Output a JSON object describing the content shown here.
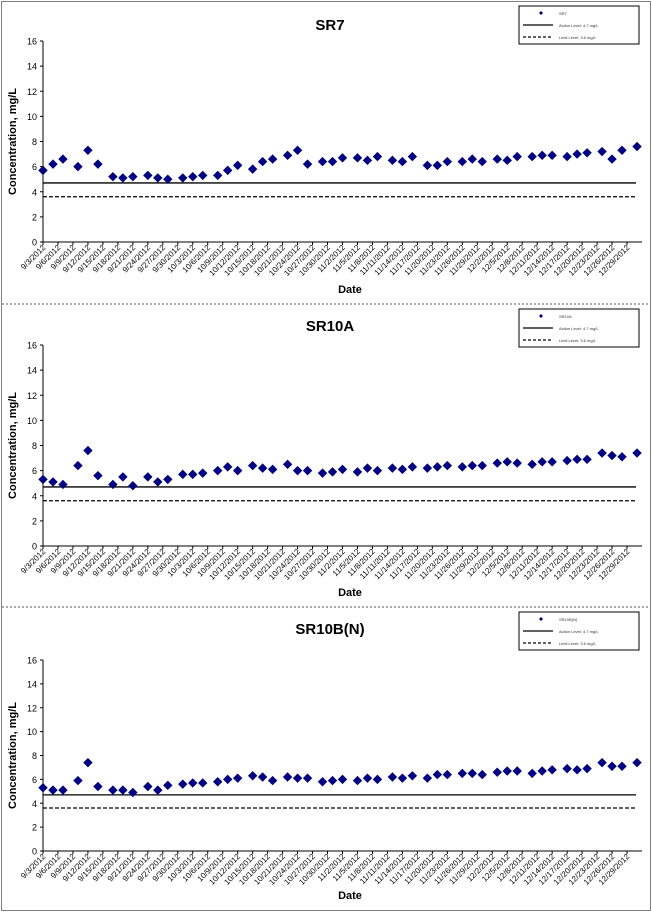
{
  "dates": [
    "9/3/2012",
    "9/6/2012",
    "9/9/2012",
    "9/12/2012",
    "9/15/2012",
    "9/18/2012",
    "9/21/2012",
    "9/24/2012",
    "9/27/2012",
    "9/30/2012",
    "10/3/2012",
    "10/6/2012",
    "10/9/2012",
    "10/12/2012",
    "10/15/2012",
    "10/18/2012",
    "10/21/2012",
    "10/24/2012",
    "10/27/2012",
    "10/30/2012",
    "11/2/2012",
    "11/5/2012",
    "11/8/2012",
    "11/11/2012",
    "11/14/2012",
    "11/17/2012",
    "11/20/2012",
    "11/23/2012",
    "11/26/2012",
    "11/29/2012",
    "12/2/2012",
    "12/5/2012",
    "12/8/2012",
    "12/11/2012",
    "12/14/2012",
    "12/17/2012",
    "12/20/2012",
    "12/23/2012",
    "12/26/2012",
    "12/29/2012"
  ],
  "colors": {
    "marker": "#000080",
    "line": "#000000",
    "frame": "#808080"
  },
  "chart_data": [
    {
      "type": "scatter",
      "title": "SR7",
      "xlabel": "Date",
      "ylabel": "Concentration, mg/L",
      "ylim": [
        0,
        16
      ],
      "yticks": [
        0,
        2,
        4,
        6,
        8,
        10,
        12,
        14,
        16
      ],
      "xlim": [
        "9/3/2012",
        "1/1/2013"
      ],
      "grid": false,
      "legend_position": "top-right",
      "legend": [
        "SR7",
        "Action Level: 4.7 mg/L",
        "Limit Level: 3.6 mg/L"
      ],
      "series": [
        {
          "name": "SR7",
          "marker": "diamond",
          "x": [
            "9/3/2012",
            "9/5/2012",
            "9/7/2012",
            "9/10/2012",
            "9/12/2012",
            "9/14/2012",
            "9/17/2012",
            "9/19/2012",
            "9/21/2012",
            "9/24/2012",
            "9/26/2012",
            "9/28/2012",
            "10/1/2012",
            "10/3/2012",
            "10/5/2012",
            "10/8/2012",
            "10/10/2012",
            "10/12/2012",
            "10/15/2012",
            "10/17/2012",
            "10/19/2012",
            "10/22/2012",
            "10/24/2012",
            "10/26/2012",
            "10/29/2012",
            "10/31/2012",
            "11/2/2012",
            "11/5/2012",
            "11/7/2012",
            "11/9/2012",
            "11/12/2012",
            "11/14/2012",
            "11/16/2012",
            "11/19/2012",
            "11/21/2012",
            "11/23/2012",
            "11/26/2012",
            "11/28/2012",
            "11/30/2012",
            "12/3/2012",
            "12/5/2012",
            "12/7/2012",
            "12/10/2012",
            "12/12/2012",
            "12/14/2012",
            "12/17/2012",
            "12/19/2012",
            "12/21/2012",
            "12/24/2012",
            "12/26/2012",
            "12/28/2012",
            "12/31/2012"
          ],
          "y": [
            5.7,
            6.2,
            6.6,
            6.0,
            7.3,
            6.2,
            5.2,
            5.1,
            5.2,
            5.3,
            5.1,
            5.0,
            5.1,
            5.2,
            5.3,
            5.3,
            5.7,
            6.1,
            5.8,
            6.4,
            6.6,
            6.9,
            7.3,
            6.2,
            6.4,
            6.4,
            6.7,
            6.7,
            6.5,
            6.8,
            6.5,
            6.4,
            6.8,
            6.1,
            6.1,
            6.4,
            6.4,
            6.6,
            6.4,
            6.6,
            6.5,
            6.8,
            6.8,
            6.9,
            6.9,
            6.8,
            7.0,
            7.1,
            7.2,
            6.6,
            7.3,
            7.6
          ]
        }
      ],
      "reference_lines": [
        {
          "name": "Action Level: 4.7 mg/L",
          "y": 4.7,
          "style": "solid"
        },
        {
          "name": "Limit Level: 3.6 mg/L",
          "y": 3.6,
          "style": "dashed"
        }
      ]
    },
    {
      "type": "scatter",
      "title": "SR10A",
      "xlabel": "Date",
      "ylabel": "Concentration, mg/L",
      "ylim": [
        0,
        16
      ],
      "yticks": [
        0,
        2,
        4,
        6,
        8,
        10,
        12,
        14,
        16
      ],
      "xlim": [
        "9/3/2012",
        "1/1/2013"
      ],
      "grid": false,
      "legend_position": "top-right",
      "legend": [
        "SR10A",
        "Action Level: 4.7 mg/L",
        "Limit Level: 3.6 mg/L"
      ],
      "series": [
        {
          "name": "SR10A",
          "marker": "diamond",
          "x": [
            "9/3/2012",
            "9/5/2012",
            "9/7/2012",
            "9/10/2012",
            "9/12/2012",
            "9/14/2012",
            "9/17/2012",
            "9/19/2012",
            "9/21/2012",
            "9/24/2012",
            "9/26/2012",
            "9/28/2012",
            "10/1/2012",
            "10/3/2012",
            "10/5/2012",
            "10/8/2012",
            "10/10/2012",
            "10/12/2012",
            "10/15/2012",
            "10/17/2012",
            "10/19/2012",
            "10/22/2012",
            "10/24/2012",
            "10/26/2012",
            "10/29/2012",
            "10/31/2012",
            "11/2/2012",
            "11/5/2012",
            "11/7/2012",
            "11/9/2012",
            "11/12/2012",
            "11/14/2012",
            "11/16/2012",
            "11/19/2012",
            "11/21/2012",
            "11/23/2012",
            "11/26/2012",
            "11/28/2012",
            "11/30/2012",
            "12/3/2012",
            "12/5/2012",
            "12/7/2012",
            "12/10/2012",
            "12/12/2012",
            "12/14/2012",
            "12/17/2012",
            "12/19/2012",
            "12/21/2012",
            "12/24/2012",
            "12/26/2012",
            "12/28/2012",
            "12/31/2012"
          ],
          "y": [
            5.3,
            5.1,
            4.9,
            6.4,
            7.6,
            5.6,
            4.9,
            5.5,
            4.8,
            5.5,
            5.1,
            5.3,
            5.7,
            5.7,
            5.8,
            6.0,
            6.3,
            6.0,
            6.4,
            6.2,
            6.1,
            6.5,
            6.0,
            6.0,
            5.8,
            5.9,
            6.1,
            5.9,
            6.2,
            6.0,
            6.2,
            6.1,
            6.3,
            6.2,
            6.3,
            6.4,
            6.3,
            6.4,
            6.4,
            6.6,
            6.7,
            6.6,
            6.5,
            6.7,
            6.7,
            6.8,
            6.9,
            6.9,
            7.4,
            7.2,
            7.1,
            7.4
          ]
        }
      ],
      "reference_lines": [
        {
          "name": "Action Level: 4.7 mg/L",
          "y": 4.7,
          "style": "solid"
        },
        {
          "name": "Limit Level: 3.6 mg/L",
          "y": 3.6,
          "style": "dashed"
        }
      ]
    },
    {
      "type": "scatter",
      "title": "SR10B(N)",
      "xlabel": "Date",
      "ylabel": "Concentration, mg/L",
      "ylim": [
        0,
        16
      ],
      "yticks": [
        0,
        2,
        4,
        6,
        8,
        10,
        12,
        14,
        16
      ],
      "xlim": [
        "9/3/2012",
        "1/1/2013"
      ],
      "grid": false,
      "legend_position": "top-right",
      "legend": [
        "SR10B(N)",
        "Action Level: 4.7 mg/L",
        "Limit Level: 3.6 mg/L"
      ],
      "series": [
        {
          "name": "SR10B(N)",
          "marker": "diamond",
          "x": [
            "9/3/2012",
            "9/5/2012",
            "9/7/2012",
            "9/10/2012",
            "9/12/2012",
            "9/14/2012",
            "9/17/2012",
            "9/19/2012",
            "9/21/2012",
            "9/24/2012",
            "9/26/2012",
            "9/28/2012",
            "10/1/2012",
            "10/3/2012",
            "10/5/2012",
            "10/8/2012",
            "10/10/2012",
            "10/12/2012",
            "10/15/2012",
            "10/17/2012",
            "10/19/2012",
            "10/22/2012",
            "10/24/2012",
            "10/26/2012",
            "10/29/2012",
            "10/31/2012",
            "11/2/2012",
            "11/5/2012",
            "11/7/2012",
            "11/9/2012",
            "11/12/2012",
            "11/14/2012",
            "11/16/2012",
            "11/19/2012",
            "11/21/2012",
            "11/23/2012",
            "11/26/2012",
            "11/28/2012",
            "11/30/2012",
            "12/3/2012",
            "12/5/2012",
            "12/7/2012",
            "12/10/2012",
            "12/12/2012",
            "12/14/2012",
            "12/17/2012",
            "12/19/2012",
            "12/21/2012",
            "12/24/2012",
            "12/26/2012",
            "12/28/2012",
            "12/31/2012"
          ],
          "y": [
            5.3,
            5.1,
            5.1,
            5.9,
            7.4,
            5.4,
            5.1,
            5.1,
            4.9,
            5.4,
            5.1,
            5.5,
            5.6,
            5.7,
            5.7,
            5.8,
            6.0,
            6.1,
            6.3,
            6.2,
            5.9,
            6.2,
            6.1,
            6.1,
            5.8,
            5.9,
            6.0,
            5.9,
            6.1,
            6.0,
            6.2,
            6.1,
            6.3,
            6.1,
            6.4,
            6.4,
            6.5,
            6.5,
            6.4,
            6.6,
            6.7,
            6.7,
            6.5,
            6.7,
            6.8,
            6.9,
            6.8,
            6.9,
            7.4,
            7.1,
            7.1,
            7.4
          ]
        }
      ],
      "reference_lines": [
        {
          "name": "Action Level: 4.7 mg/L",
          "y": 4.7,
          "style": "solid"
        },
        {
          "name": "Limit Level: 3.6 mg/L",
          "y": 3.6,
          "style": "dashed"
        }
      ]
    }
  ]
}
